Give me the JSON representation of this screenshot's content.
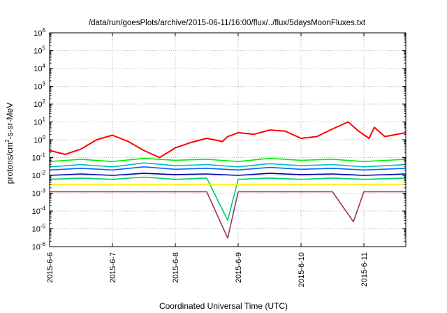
{
  "chart_data": {
    "type": "line",
    "title": "/data/run/goesPlots/archive/2015-06-11/16:00/flux/../flux/5daysMoonFluxes.txt",
    "xlabel": "Coordinated Universal Time (UTC)",
    "ylabel": {
      "base": "protons/cm",
      "sup": "2",
      "rest": "-s-sr-MeV"
    },
    "x_range": [
      "2015-06-06T00:00",
      "2015-06-11T16:00"
    ],
    "x_ticks": [
      {
        "date": "2015-06-06",
        "label": "2015-6-6"
      },
      {
        "date": "2015-06-07",
        "label": "2015-6-7"
      },
      {
        "date": "2015-06-08",
        "label": "2015-6-8"
      },
      {
        "date": "2015-06-09",
        "label": "2015-6-9"
      },
      {
        "date": "2015-06-10",
        "label": "2015-6-10"
      },
      {
        "date": "2015-06-11",
        "label": "2015-6-11"
      }
    ],
    "y_scale": "log",
    "ylim": [
      1e-06,
      1000000.0
    ],
    "y_ticks": [
      {
        "value": 1e-06,
        "base": "10",
        "exp": "-6"
      },
      {
        "value": 1e-05,
        "base": "10",
        "exp": "-5"
      },
      {
        "value": 0.0001,
        "base": "10",
        "exp": "-4"
      },
      {
        "value": 0.001,
        "base": "10",
        "exp": "-3"
      },
      {
        "value": 0.01,
        "base": "10",
        "exp": "-2"
      },
      {
        "value": 0.1,
        "base": "10",
        "exp": "-1"
      },
      {
        "value": 1,
        "base": "10",
        "exp": "0"
      },
      {
        "value": 10,
        "base": "10",
        "exp": "1"
      },
      {
        "value": 100,
        "base": "10",
        "exp": "2"
      },
      {
        "value": 1000,
        "base": "10",
        "exp": "3"
      },
      {
        "value": 10000,
        "base": "10",
        "exp": "4"
      },
      {
        "value": 100000,
        "base": "10",
        "exp": "5"
      },
      {
        "value": 1000000,
        "base": "10",
        "exp": "6"
      }
    ],
    "grid": true,
    "legend": "none",
    "series": [
      {
        "color": "#ff0000",
        "x": [
          "2015-06-06T00:00",
          "2015-06-06T06:00",
          "2015-06-06T12:00",
          "2015-06-06T18:00",
          "2015-06-07T00:00",
          "2015-06-07T06:00",
          "2015-06-07T12:00",
          "2015-06-07T18:00",
          "2015-06-08T00:00",
          "2015-06-08T06:00",
          "2015-06-08T12:00",
          "2015-06-08T18:00",
          "2015-06-08T20:00",
          "2015-06-09T00:00",
          "2015-06-09T06:00",
          "2015-06-09T12:00",
          "2015-06-09T18:00",
          "2015-06-10T00:00",
          "2015-06-10T06:00",
          "2015-06-10T12:00",
          "2015-06-10T18:00",
          "2015-06-10T22:00",
          "2015-06-11T02:00",
          "2015-06-11T04:00",
          "2015-06-11T08:00",
          "2015-06-11T16:00"
        ],
        "y": [
          0.25,
          0.15,
          0.3,
          1.0,
          1.8,
          0.8,
          0.25,
          0.1,
          0.35,
          0.7,
          1.2,
          0.8,
          1.5,
          2.5,
          2.0,
          3.5,
          3.0,
          1.2,
          1.5,
          4.0,
          10,
          3,
          1.2,
          5,
          1.5,
          2.5
        ]
      },
      {
        "color": "#00ee00",
        "x": [
          "2015-06-06T00:00",
          "2015-06-06T12:00",
          "2015-06-07T00:00",
          "2015-06-07T12:00",
          "2015-06-08T00:00",
          "2015-06-08T12:00",
          "2015-06-09T00:00",
          "2015-06-09T12:00",
          "2015-06-10T00:00",
          "2015-06-10T12:00",
          "2015-06-11T00:00",
          "2015-06-11T16:00"
        ],
        "y": [
          0.06,
          0.08,
          0.06,
          0.09,
          0.07,
          0.08,
          0.06,
          0.09,
          0.07,
          0.08,
          0.06,
          0.08
        ]
      },
      {
        "color": "#00bbbb",
        "x": [
          "2015-06-06T00:00",
          "2015-06-06T12:00",
          "2015-06-07T00:00",
          "2015-06-07T12:00",
          "2015-06-08T00:00",
          "2015-06-08T12:00",
          "2015-06-09T00:00",
          "2015-06-09T12:00",
          "2015-06-10T00:00",
          "2015-06-10T12:00",
          "2015-06-11T00:00",
          "2015-06-11T16:00"
        ],
        "y": [
          0.03,
          0.04,
          0.03,
          0.05,
          0.035,
          0.04,
          0.03,
          0.045,
          0.035,
          0.04,
          0.03,
          0.04
        ]
      },
      {
        "color": "#0066ff",
        "x": [
          "2015-06-06T00:00",
          "2015-06-06T12:00",
          "2015-06-07T00:00",
          "2015-06-07T12:00",
          "2015-06-08T00:00",
          "2015-06-08T12:00",
          "2015-06-09T00:00",
          "2015-06-09T12:00",
          "2015-06-10T00:00",
          "2015-06-10T12:00",
          "2015-06-11T00:00",
          "2015-06-11T16:00"
        ],
        "y": [
          0.02,
          0.025,
          0.02,
          0.03,
          0.022,
          0.025,
          0.02,
          0.028,
          0.022,
          0.025,
          0.02,
          0.025
        ]
      },
      {
        "color": "#0000aa",
        "x": [
          "2015-06-06T00:00",
          "2015-06-06T12:00",
          "2015-06-07T00:00",
          "2015-06-07T12:00",
          "2015-06-08T00:00",
          "2015-06-08T12:00",
          "2015-06-09T00:00",
          "2015-06-09T12:00",
          "2015-06-10T00:00",
          "2015-06-10T12:00",
          "2015-06-11T00:00",
          "2015-06-11T16:00"
        ],
        "y": [
          0.01,
          0.012,
          0.01,
          0.013,
          0.011,
          0.012,
          0.01,
          0.013,
          0.011,
          0.012,
          0.01,
          0.012
        ]
      },
      {
        "color": "#00cc66",
        "x": [
          "2015-06-06T00:00",
          "2015-06-06T12:00",
          "2015-06-07T00:00",
          "2015-06-07T12:00",
          "2015-06-08T00:00",
          "2015-06-08T12:00",
          "2015-06-08T20:00",
          "2015-06-09T00:00",
          "2015-06-09T12:00",
          "2015-06-10T00:00",
          "2015-06-10T12:00",
          "2015-06-11T00:00",
          "2015-06-11T16:00"
        ],
        "y": [
          0.006,
          0.007,
          0.006,
          0.008,
          0.006,
          0.007,
          3e-05,
          0.006,
          0.007,
          0.006,
          0.007,
          0.006,
          0.007
        ]
      },
      {
        "color": "#ffee00",
        "x": [
          "2015-06-06T00:00",
          "2015-06-06T12:00",
          "2015-06-07T00:00",
          "2015-06-07T12:00",
          "2015-06-08T00:00",
          "2015-06-08T12:00",
          "2015-06-09T00:00",
          "2015-06-09T12:00",
          "2015-06-10T00:00",
          "2015-06-10T12:00",
          "2015-06-11T00:00",
          "2015-06-11T16:00"
        ],
        "y": [
          0.003,
          0.003,
          0.003,
          0.003,
          0.003,
          0.003,
          0.003,
          0.003,
          0.003,
          0.003,
          0.003,
          0.003
        ]
      },
      {
        "color": "#993366",
        "x": [
          "2015-06-06T00:00",
          "2015-06-06T12:00",
          "2015-06-07T00:00",
          "2015-06-07T12:00",
          "2015-06-08T00:00",
          "2015-06-08T12:00",
          "2015-06-08T20:00",
          "2015-06-09T00:00",
          "2015-06-09T12:00",
          "2015-06-10T00:00",
          "2015-06-10T12:00",
          "2015-06-10T20:00",
          "2015-06-11T00:00",
          "2015-06-11T16:00"
        ],
        "y": [
          0.0012,
          0.0012,
          0.0012,
          0.0012,
          0.0012,
          0.0012,
          3e-06,
          0.0012,
          0.0012,
          0.0012,
          0.0012,
          2.5e-05,
          0.0012,
          0.0012
        ]
      }
    ]
  }
}
